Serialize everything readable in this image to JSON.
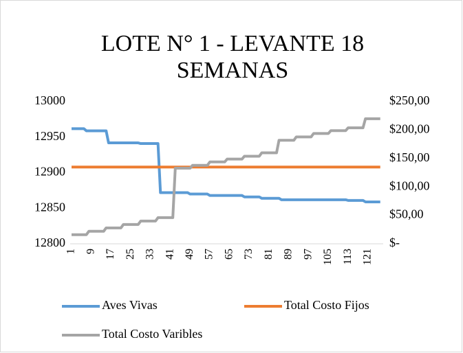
{
  "chart_data": {
    "type": "line",
    "title": "LOTE N° 1 - LEVANTE 18 SEMANAS",
    "categories": [
      "1",
      null,
      null,
      null,
      null,
      null,
      null,
      null,
      "9",
      null,
      null,
      null,
      null,
      null,
      null,
      null,
      "17",
      null,
      null,
      null,
      null,
      null,
      null,
      null,
      "25",
      null,
      null,
      null,
      null,
      null,
      null,
      null,
      "33",
      null,
      null,
      null,
      null,
      null,
      null,
      null,
      "41",
      null,
      null,
      null,
      null,
      null,
      null,
      null,
      "49",
      null,
      null,
      null,
      null,
      null,
      null,
      null,
      "57",
      null,
      null,
      null,
      null,
      null,
      null,
      null,
      "65",
      null,
      null,
      null,
      null,
      null,
      null,
      null,
      "73",
      null,
      null,
      null,
      null,
      null,
      null,
      null,
      "81",
      null,
      null,
      null,
      null,
      null,
      null,
      null,
      "89",
      null,
      null,
      null,
      null,
      null,
      null,
      null,
      "97",
      null,
      null,
      null,
      null,
      null,
      null,
      null,
      "105",
      null,
      null,
      null,
      null,
      null,
      null,
      null,
      "113",
      null,
      null,
      null,
      null,
      null,
      null,
      null,
      "121",
      null,
      null,
      null,
      null,
      null
    ],
    "series": [
      {
        "name": "Aves Vivas",
        "color": "#5b9bd5",
        "axis": "y",
        "values": [
          12962,
          12962,
          12962,
          12962,
          12962,
          12962,
          12959,
          12959,
          12959,
          12959,
          12959,
          12959,
          12959,
          12959,
          12959,
          12942,
          12942,
          12942,
          12942,
          12942,
          12942,
          12942,
          12942,
          12942,
          12942,
          12942,
          12942,
          12942,
          12941,
          12941,
          12941,
          12941,
          12941,
          12941,
          12941,
          12941,
          12872,
          12872,
          12872,
          12872,
          12872,
          12872,
          12872,
          12872,
          12872,
          12872,
          12872,
          12872,
          12870,
          12870,
          12870,
          12870,
          12870,
          12870,
          12870,
          12870,
          12868,
          12868,
          12868,
          12868,
          12868,
          12868,
          12868,
          12868,
          12868,
          12868,
          12868,
          12868,
          12868,
          12868,
          12866,
          12866,
          12866,
          12866,
          12866,
          12866,
          12866,
          12864,
          12864,
          12864,
          12864,
          12864,
          12864,
          12864,
          12864,
          12862,
          12862,
          12862,
          12862,
          12862,
          12862,
          12862,
          12862,
          12862,
          12862,
          12862,
          12862,
          12862,
          12862,
          12862,
          12862,
          12862,
          12862,
          12862,
          12862,
          12862,
          12862,
          12862,
          12862,
          12862,
          12862,
          12862,
          12861,
          12861,
          12861,
          12861,
          12861,
          12861,
          12861,
          12859,
          12859,
          12859,
          12859,
          12859,
          12859,
          12859
        ]
      },
      {
        "name": "Total Costo Fijos",
        "color": "#ed7d31",
        "axis": "y2",
        "values": [
          135,
          135,
          135,
          135,
          135,
          135,
          135,
          135,
          135,
          135,
          135,
          135,
          135,
          135,
          135,
          135,
          135,
          135,
          135,
          135,
          135,
          135,
          135,
          135,
          135,
          135,
          135,
          135,
          135,
          135,
          135,
          135,
          135,
          135,
          135,
          135,
          135,
          135,
          135,
          135,
          135,
          135,
          135,
          135,
          135,
          135,
          135,
          135,
          135,
          135,
          135,
          135,
          135,
          135,
          135,
          135,
          135,
          135,
          135,
          135,
          135,
          135,
          135,
          135,
          135,
          135,
          135,
          135,
          135,
          135,
          135,
          135,
          135,
          135,
          135,
          135,
          135,
          135,
          135,
          135,
          135,
          135,
          135,
          135,
          135,
          135,
          135,
          135,
          135,
          135,
          135,
          135,
          135,
          135,
          135,
          135,
          135,
          135,
          135,
          135,
          135,
          135,
          135,
          135,
          135,
          135,
          135,
          135,
          135,
          135,
          135,
          135,
          135,
          135,
          135,
          135,
          135,
          135,
          135,
          135,
          135,
          135,
          135,
          135,
          135,
          135
        ]
      },
      {
        "name": "Total Costo Varibles",
        "color": "#a5a5a5",
        "axis": "y2",
        "values": [
          16,
          16,
          16,
          16,
          16,
          16,
          16,
          22,
          22,
          22,
          22,
          22,
          22,
          22,
          28,
          28,
          28,
          28,
          28,
          28,
          28,
          34,
          34,
          34,
          34,
          34,
          34,
          34,
          40,
          40,
          40,
          40,
          40,
          40,
          40,
          46,
          46,
          46,
          46,
          46,
          46,
          46,
          133,
          133,
          133,
          133,
          133,
          133,
          133,
          138,
          138,
          138,
          138,
          138,
          138,
          138,
          144,
          144,
          144,
          144,
          144,
          144,
          144,
          149,
          149,
          149,
          149,
          149,
          149,
          149,
          154,
          154,
          154,
          154,
          154,
          154,
          154,
          160,
          160,
          160,
          160,
          160,
          160,
          160,
          182,
          182,
          182,
          182,
          182,
          182,
          182,
          188,
          188,
          188,
          188,
          188,
          188,
          188,
          194,
          194,
          194,
          194,
          194,
          194,
          194,
          199,
          199,
          199,
          199,
          199,
          199,
          199,
          204,
          204,
          204,
          204,
          204,
          204,
          204,
          220,
          220,
          220,
          220,
          220,
          220,
          220
        ]
      }
    ],
    "ylim": [
      12800,
      13000
    ],
    "yticks": [
      12800,
      12850,
      12900,
      12950,
      13000
    ],
    "y2lim": [
      0,
      250
    ],
    "y2ticks": [
      {
        "value": 0,
        "label": "$-"
      },
      {
        "value": 50,
        "label": "$50,00"
      },
      {
        "value": 100,
        "label": "$100,00"
      },
      {
        "value": 150,
        "label": "$150,00"
      },
      {
        "value": 200,
        "label": "$200,00"
      },
      {
        "value": 250,
        "label": "$250,00"
      }
    ],
    "grid": false,
    "legend": "bottom"
  }
}
